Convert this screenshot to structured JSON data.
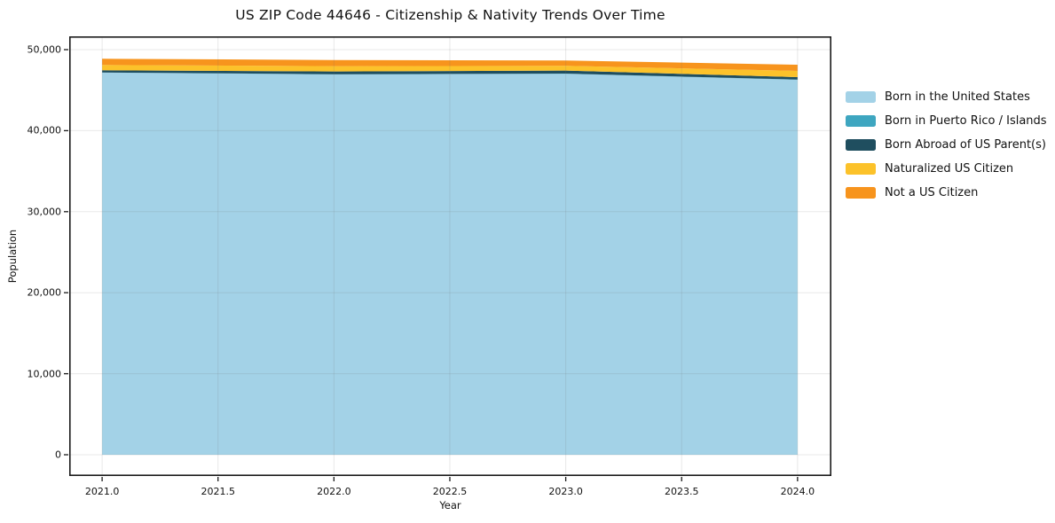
{
  "chart_data": {
    "type": "area",
    "stacked": true,
    "title": "US ZIP Code 44646 - Citizenship & Nativity Trends Over Time",
    "xlabel": "Year",
    "ylabel": "Population",
    "x": [
      2021,
      2022,
      2023,
      2024
    ],
    "series": [
      {
        "name": "Born in the United States",
        "color": "#A3D2E7",
        "values": [
          47160,
          46940,
          47020,
          46280
        ]
      },
      {
        "name": "Born in Puerto Rico / Islands",
        "color": "#3EA6C0",
        "values": [
          25,
          25,
          25,
          25
        ]
      },
      {
        "name": "Born Abroad of US Parent(s)",
        "color": "#1F4E5F",
        "values": [
          265,
          335,
          365,
          305
        ]
      },
      {
        "name": "Naturalized US Citizen",
        "color": "#FCC22A",
        "values": [
          660,
          660,
          590,
          765
        ]
      },
      {
        "name": "Not a US Citizen",
        "color": "#F7941D",
        "values": [
          765,
          760,
          660,
          765
        ]
      }
    ],
    "xlim": [
      2020.858,
      2024.146
    ],
    "ylim": [
      -2626,
      51641
    ],
    "x_ticks": {
      "values": [
        2021.0,
        2021.5,
        2022.0,
        2022.5,
        2023.0,
        2023.5,
        2024.0
      ],
      "labels": [
        "2021.0",
        "2021.5",
        "2022.0",
        "2022.5",
        "2023.0",
        "2023.5",
        "2024.0"
      ]
    },
    "y_ticks": {
      "values": [
        0,
        10000,
        20000,
        30000,
        40000,
        50000
      ],
      "labels": [
        "0",
        "10,000",
        "20,000",
        "30,000",
        "40,000",
        "50,000"
      ]
    },
    "grid": true,
    "legend_position": "right",
    "frame_color": "#1a1a1a",
    "background": "#ffffff"
  }
}
